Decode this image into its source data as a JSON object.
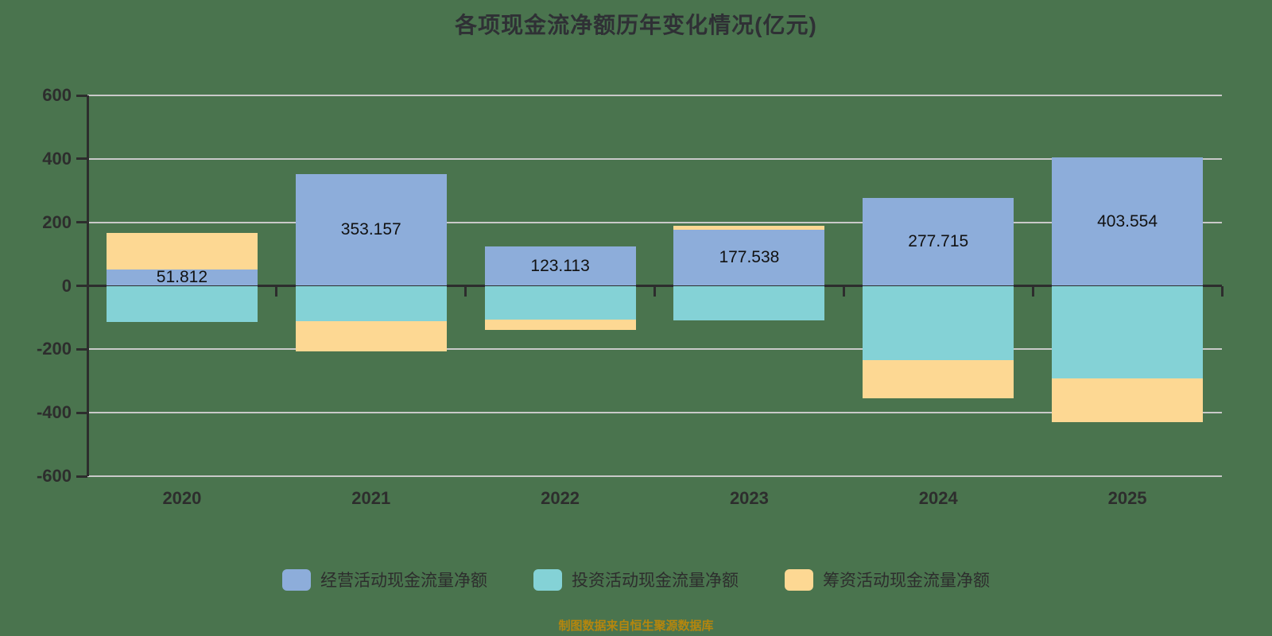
{
  "title": "各项现金流净额历年变化情况(亿元)",
  "caption": "制图数据来自恒生聚源数据库",
  "colors": {
    "background": "#4a744e",
    "gridline": "#c9c9c9",
    "axis": "#2d2d2d",
    "tick_label": "#2d2d2d",
    "title_text": "#2f3035",
    "bar_label": "#111111",
    "caption_text": "#b5860e",
    "operating": "#8dadda",
    "investing": "#84d2d6",
    "financing": "#fdd893"
  },
  "chart_data": {
    "type": "bar",
    "stacked": true,
    "title": "各项现金流净额历年变化情况(亿元)",
    "categories": [
      "2020",
      "2021",
      "2022",
      "2023",
      "2024",
      "2025"
    ],
    "series": [
      {
        "name": "经营活动现金流量净额",
        "color": "#8dadda",
        "values": [
          51.812,
          353.157,
          123.113,
          177.538,
          277.715,
          403.554
        ]
      },
      {
        "name": "投资活动现金流量净额",
        "color": "#84d2d6",
        "values": [
          -114.5,
          -111.3,
          -107.0,
          -108.0,
          -234.5,
          -291.3
        ]
      },
      {
        "name": "筹资活动现金流量净额",
        "color": "#fdd893",
        "values": [
          113.7,
          -95.8,
          -31.0,
          11.3,
          -121.0,
          -137.5
        ]
      }
    ],
    "bar_labels": [
      "51.812",
      "353.157",
      "123.113",
      "177.538",
      "277.715",
      "403.554"
    ],
    "ylim": [
      -600,
      600
    ],
    "yticks": [
      600,
      400,
      200,
      0,
      -200,
      -400,
      -600
    ],
    "grid": true,
    "legend_position": "bottom"
  }
}
